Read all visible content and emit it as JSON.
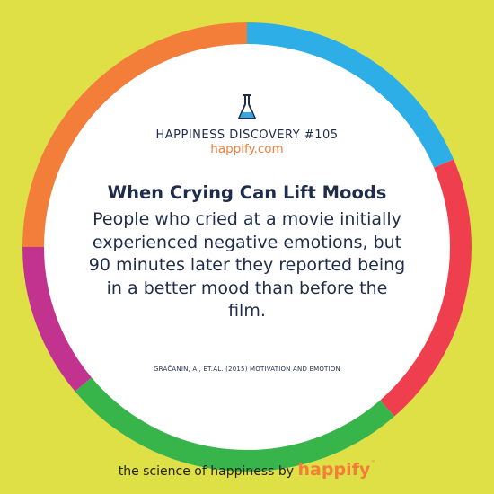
{
  "colors": {
    "background": "#dfdf46",
    "ring": [
      "#f27e3a",
      "#2eaee6",
      "#ef3f4e",
      "#38b54a",
      "#c1338e"
    ],
    "text": "#1f2d4a",
    "accent": "#f27e3a",
    "flask": "#3aa7e0"
  },
  "card": {
    "icon": "flask-icon",
    "kicker": "HAPPINESS DISCOVERY #105",
    "site": "happify.com",
    "headline": "When Crying Can Lift Moods",
    "body": "People who cried at a movie initially experienced negative emotions, but 90 minutes later they reported being in a better mood than before the film.",
    "citation": "GRAČANIN, A., ET.AL. (2015) MOTIVATION AND EMOTION"
  },
  "footer": {
    "tagline": "the science of happiness by",
    "brand": "happify",
    "trademark": "™"
  }
}
